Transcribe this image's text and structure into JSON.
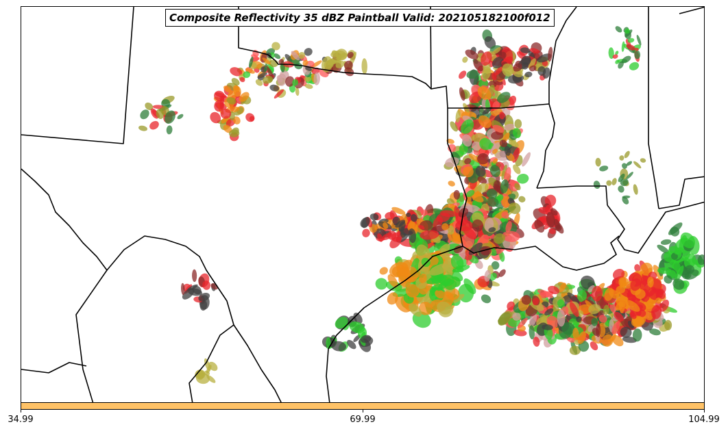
{
  "title": "Composite Reflectivity 35 dBZ Paintball Valid: 202105182100f012",
  "colorbar": {
    "color": "#ffc266",
    "ticks": [
      "34.99",
      "69.99",
      "104.99"
    ]
  },
  "map": {
    "region": "south-central-us",
    "paint_colors": [
      "#e8242b",
      "#f08a14",
      "#2ecc2e",
      "#8b2a2a",
      "#9a9a2a",
      "#2e7d3a",
      "#404040",
      "#d2a0a0",
      "#b8b040",
      "#ff5555"
    ]
  }
}
